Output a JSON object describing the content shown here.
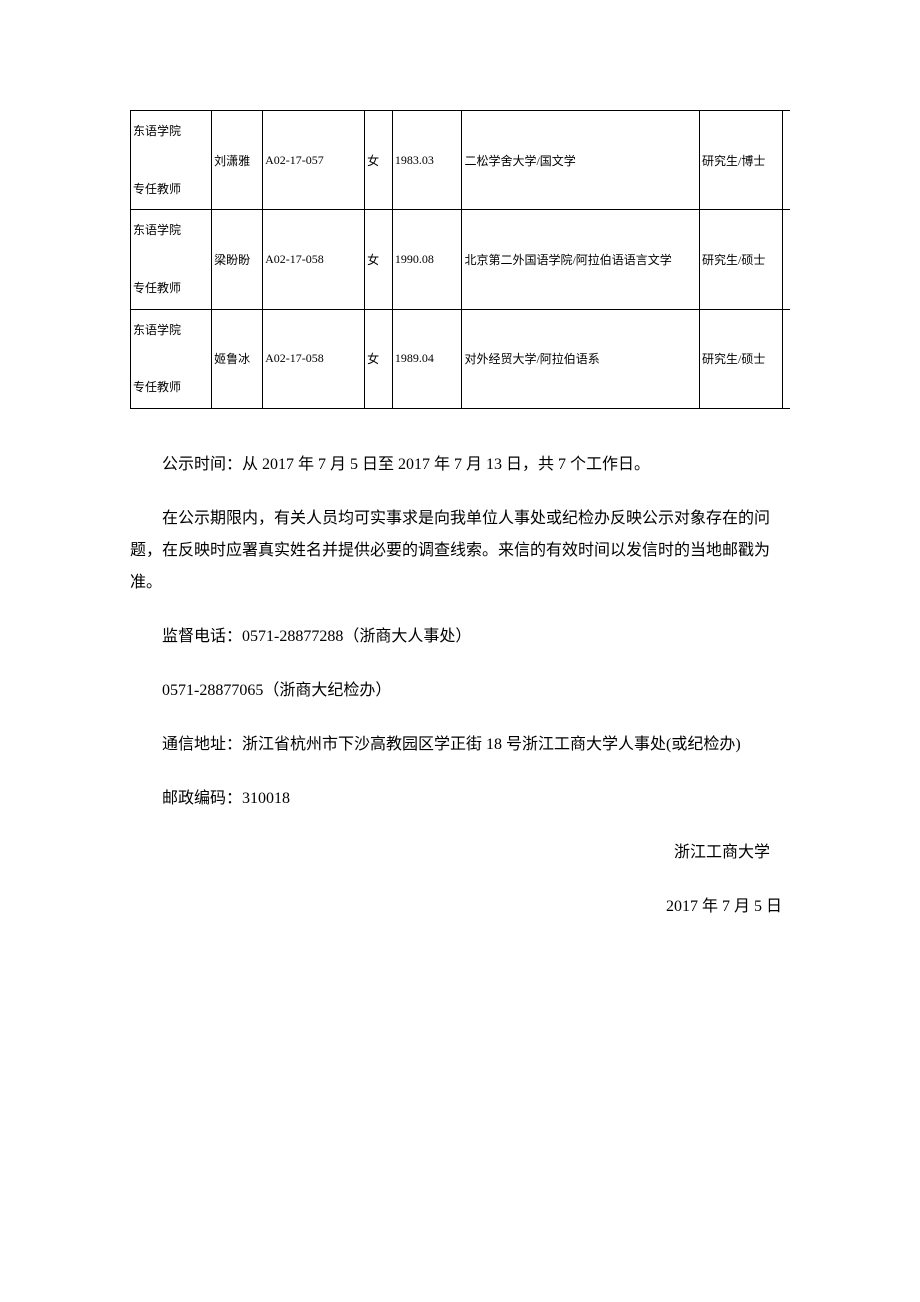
{
  "table": {
    "columns": {
      "dept_width": 70,
      "name_width": 44,
      "code_width": 88,
      "gender_width": 24,
      "birth_width": 60,
      "school_width": 205,
      "degree_width": 72
    },
    "border_color": "#000000",
    "border_width": 1.5,
    "font_size": 12,
    "rows": [
      {
        "dept": "东语学院",
        "position": "专任教师",
        "name": "刘潇雅",
        "code": "A02-17-057",
        "gender": "女",
        "birth": "1983.03",
        "school": "二松学舍大学/国文学",
        "degree": "研究生/博士"
      },
      {
        "dept": "东语学院",
        "position": "专任教师",
        "name": "梁盼盼",
        "code": "A02-17-058",
        "gender": "女",
        "birth": "1990.08",
        "school": "北京第二外国语学院/阿拉伯语语言文学",
        "degree": "研究生/硕士"
      },
      {
        "dept": "东语学院",
        "position": "专任教师",
        "name": "姬鲁冰",
        "code": "A02-17-058",
        "gender": "女",
        "birth": "1989.04",
        "school": "对外经贸大学/阿拉伯语系",
        "degree": "研究生/硕士"
      }
    ]
  },
  "body": {
    "p1": "公示时间：从 2017 年 7 月 5 日至 2017 年 7 月 13 日，共 7 个工作日。",
    "p2": "在公示期限内，有关人员均可实事求是向我单位人事处或纪检办反映公示对象存在的问题，在反映时应署真实姓名并提供必要的调查线索。来信的有效时间以发信时的当地邮戳为准。",
    "p3": "监督电话：0571-28877288（浙商大人事处）",
    "p4": "0571-28877065（浙商大纪检办）",
    "p5": "通信地址：浙江省杭州市下沙高教园区学正街 18 号浙江工商大学人事处(或纪检办)",
    "p6": "邮政编码：310018",
    "signature": "浙江工商大学",
    "date": "2017 年 7 月 5 日"
  },
  "style": {
    "background_color": "#ffffff",
    "text_color": "#000000",
    "body_font_size": 16,
    "body_line_height": 2.0,
    "body_text_indent_em": 2
  }
}
